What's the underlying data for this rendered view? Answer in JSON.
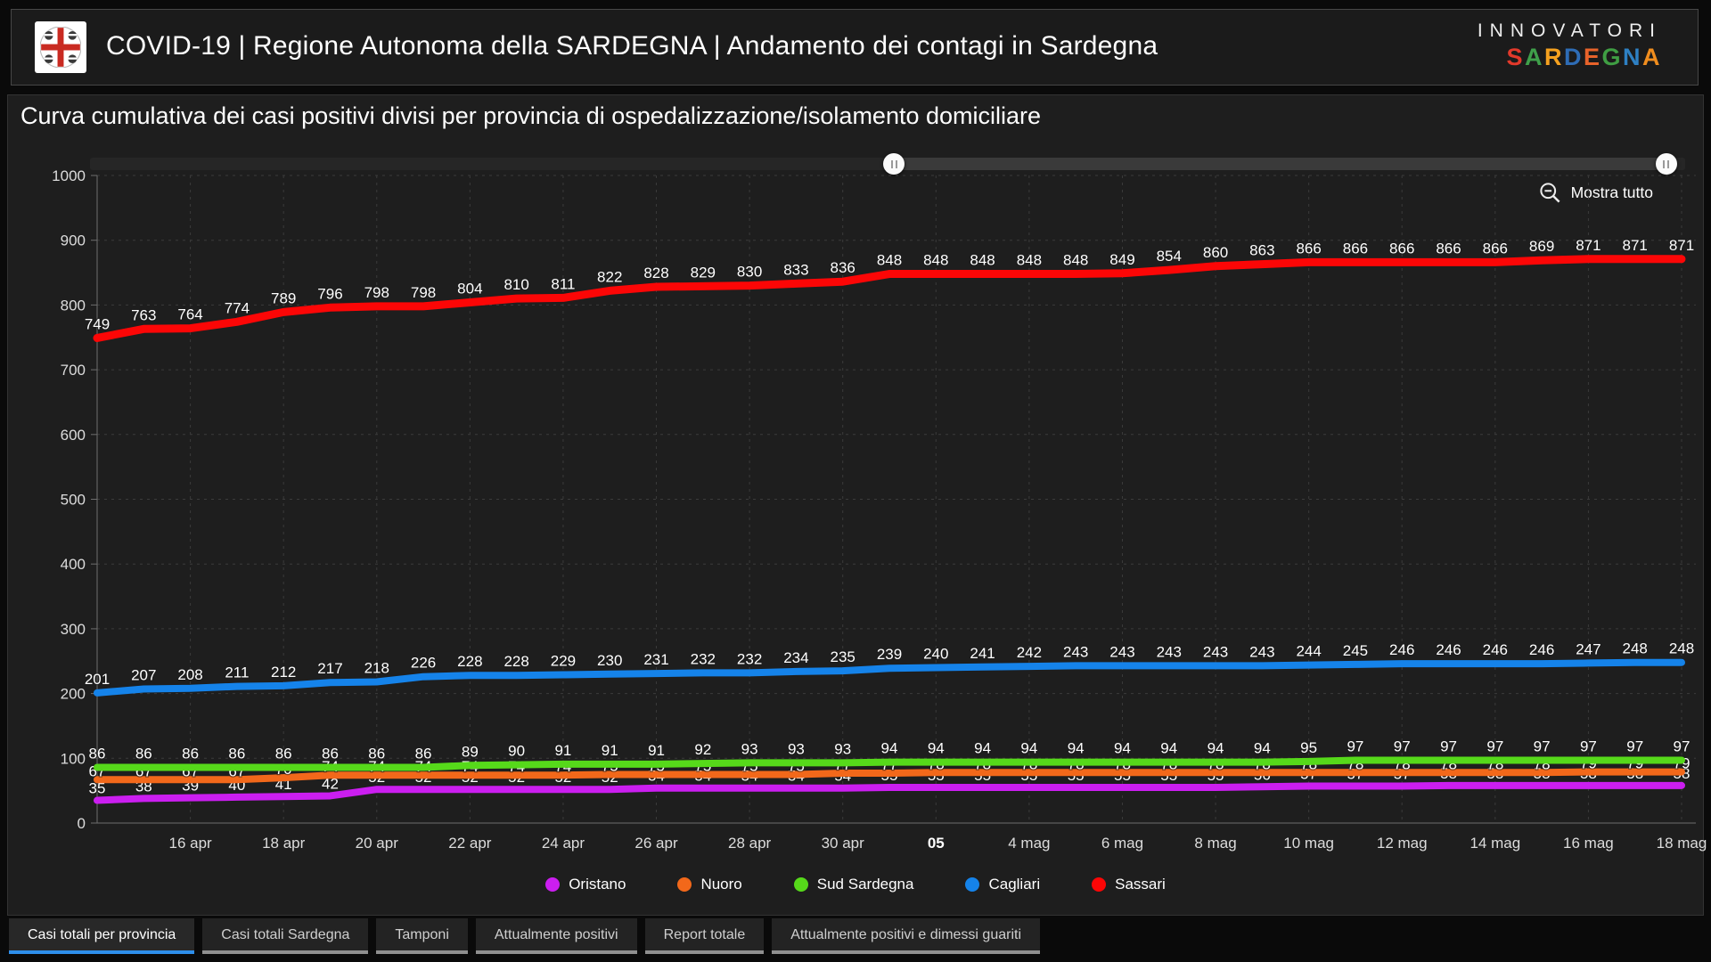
{
  "header": {
    "title": "COVID-19 | Regione Autonoma della SARDEGNA | Andamento dei contagi in Sardegna",
    "brand_top": "INNOVATORI",
    "brand_letters": [
      {
        "ch": "S",
        "color": "#e2392b"
      },
      {
        "ch": "A",
        "color": "#3fa04a"
      },
      {
        "ch": "R",
        "color": "#f5a11f"
      },
      {
        "ch": "D",
        "color": "#2e6cb5"
      },
      {
        "ch": "E",
        "color": "#e8632a"
      },
      {
        "ch": "G",
        "color": "#3f9e43"
      },
      {
        "ch": "N",
        "color": "#2e80c3"
      },
      {
        "ch": "A",
        "color": "#f08d1e"
      }
    ]
  },
  "chart": {
    "zoom_out_label": "Mostra tutto",
    "slider": {
      "start_pct": 50.4,
      "end_pct": 98.8
    }
  },
  "chart_data": {
    "type": "line",
    "title": "Curva cumulativa dei casi positivi divisi per provincia di ospedalizzazione/isolamento domiciliare",
    "xlabel": "",
    "ylabel": "",
    "ylim": [
      0,
      1000
    ],
    "y_ticks": [
      0,
      100,
      200,
      300,
      400,
      500,
      600,
      700,
      800,
      900,
      1000
    ],
    "grid": true,
    "legend_position": "bottom",
    "n_points": 35,
    "x_tick_labels": [
      "16 apr",
      "18 apr",
      "20 apr",
      "22 apr",
      "24 apr",
      "26 apr",
      "28 apr",
      "30 apr",
      "05",
      "4 mag",
      "6 mag",
      "8 mag",
      "10 mag",
      "12 mag",
      "14 mag",
      "16 mag",
      "18 mag"
    ],
    "x_tick_start_index": 2,
    "x_tick_every": 2,
    "emphasized_tick": "05",
    "series": [
      {
        "name": "Oristano",
        "color": "#cb1ef0",
        "values": [
          35,
          38,
          39,
          40,
          41,
          42,
          52,
          52,
          52,
          52,
          52,
          52,
          54,
          54,
          54,
          54,
          54,
          55,
          55,
          55,
          55,
          55,
          55,
          55,
          55,
          56,
          57,
          57,
          57,
          58,
          58,
          58,
          58,
          58,
          58
        ]
      },
      {
        "name": "Nuoro",
        "color": "#f2681a",
        "values": [
          67,
          67,
          67,
          67,
          70,
          74,
          74,
          74,
          74,
          74,
          74,
          75,
          75,
          75,
          75,
          75,
          77,
          77,
          78,
          78,
          78,
          78,
          78,
          78,
          78,
          78,
          78,
          78,
          78,
          78,
          78,
          78,
          79,
          79,
          79
        ]
      },
      {
        "name": "Sud Sardegna",
        "color": "#56d91a",
        "values": [
          86,
          86,
          86,
          86,
          86,
          86,
          86,
          86,
          89,
          90,
          91,
          91,
          91,
          92,
          93,
          93,
          93,
          94,
          94,
          94,
          94,
          94,
          94,
          94,
          94,
          94,
          95,
          97,
          97,
          97,
          97,
          97,
          97,
          97,
          97
        ]
      },
      {
        "name": "Cagliari",
        "color": "#1583ea",
        "values": [
          201,
          207,
          208,
          211,
          212,
          217,
          218,
          226,
          228,
          228,
          229,
          230,
          231,
          232,
          232,
          234,
          235,
          239,
          240,
          241,
          242,
          243,
          243,
          243,
          243,
          243,
          244,
          245,
          246,
          246,
          246,
          246,
          247,
          248,
          248
        ]
      },
      {
        "name": "Sassari",
        "color": "#fc0606",
        "values": [
          749,
          763,
          764,
          774,
          789,
          796,
          798,
          798,
          804,
          810,
          811,
          822,
          828,
          829,
          830,
          833,
          836,
          848,
          848,
          848,
          848,
          848,
          849,
          854,
          860,
          863,
          866,
          866,
          866,
          866,
          866,
          869,
          871,
          871,
          871
        ]
      }
    ]
  },
  "tabs": [
    {
      "label": "Casi totali per provincia",
      "active": true
    },
    {
      "label": "Casi totali Sardegna",
      "active": false
    },
    {
      "label": "Tamponi",
      "active": false
    },
    {
      "label": "Attualmente positivi",
      "active": false
    },
    {
      "label": "Report totale",
      "active": false
    },
    {
      "label": "Attualmente positivi e dimessi guariti",
      "active": false
    }
  ]
}
